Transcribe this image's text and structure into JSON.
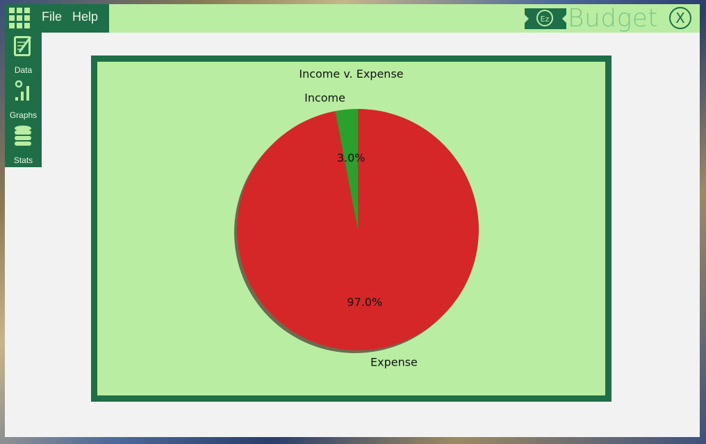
{
  "menu": {
    "file": "File",
    "help": "Help"
  },
  "brand": {
    "logo_text": "Ez",
    "name": "Budget",
    "close_glyph": "X"
  },
  "sidebar": {
    "items": [
      {
        "label": "Data",
        "icon": "notepad-icon"
      },
      {
        "label": "Graphs",
        "icon": "bar-chart-icon"
      },
      {
        "label": "Stats",
        "icon": "database-icon"
      }
    ]
  },
  "colors": {
    "dark_green": "#1e6e48",
    "light_green": "#b9eea2",
    "income": "#2ca02c",
    "expense": "#d62728"
  },
  "chart_data": {
    "type": "pie",
    "title": "Income v. Expense",
    "labels": [
      "Income",
      "Expense"
    ],
    "values": [
      3.0,
      97.0
    ],
    "pct_labels": [
      "3.0%",
      "97.0%"
    ],
    "colors": [
      "#2ca02c",
      "#d62728"
    ],
    "shadow": true,
    "legend": "none"
  }
}
